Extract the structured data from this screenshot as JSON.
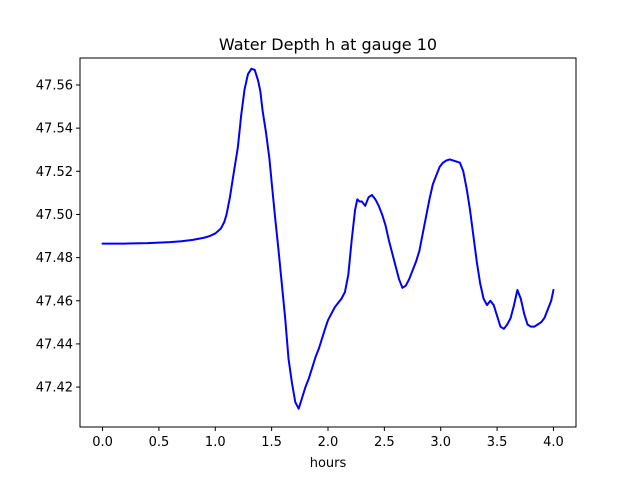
{
  "chart_data": {
    "type": "line",
    "title": "Water Depth h at gauge 10",
    "xlabel": "hours",
    "ylabel": "",
    "xlim": [
      -0.2,
      4.2
    ],
    "ylim": [
      47.4015,
      47.5725
    ],
    "xticks": [
      0.0,
      0.5,
      1.0,
      1.5,
      2.0,
      2.5,
      3.0,
      3.5,
      4.0
    ],
    "xtick_labels": [
      "0.0",
      "0.5",
      "1.0",
      "1.5",
      "2.0",
      "2.5",
      "3.0",
      "3.5",
      "4.0"
    ],
    "yticks": [
      47.42,
      47.44,
      47.46,
      47.48,
      47.5,
      47.52,
      47.54,
      47.56
    ],
    "ytick_labels": [
      "47.42",
      "47.44",
      "47.46",
      "47.48",
      "47.50",
      "47.52",
      "47.54",
      "47.56"
    ],
    "grid": false,
    "series": [
      {
        "color": "#0000ff",
        "x": [
          0.0,
          0.2,
          0.4,
          0.6,
          0.7,
          0.8,
          0.9,
          0.95,
          1.0,
          1.05,
          1.08,
          1.1,
          1.13,
          1.16,
          1.2,
          1.23,
          1.26,
          1.29,
          1.32,
          1.35,
          1.38,
          1.4,
          1.42,
          1.45,
          1.48,
          1.5,
          1.53,
          1.56,
          1.59,
          1.62,
          1.65,
          1.68,
          1.71,
          1.74,
          1.77,
          1.8,
          1.83,
          1.86,
          1.89,
          1.92,
          1.95,
          1.98,
          2.0,
          2.03,
          2.06,
          2.09,
          2.12,
          2.15,
          2.18,
          2.21,
          2.24,
          2.26,
          2.28,
          2.3,
          2.33,
          2.36,
          2.39,
          2.42,
          2.45,
          2.48,
          2.51,
          2.54,
          2.57,
          2.6,
          2.63,
          2.66,
          2.69,
          2.72,
          2.75,
          2.78,
          2.81,
          2.84,
          2.87,
          2.9,
          2.93,
          2.96,
          2.99,
          3.02,
          3.05,
          3.08,
          3.11,
          3.14,
          3.17,
          3.2,
          3.23,
          3.26,
          3.29,
          3.32,
          3.35,
          3.38,
          3.41,
          3.44,
          3.47,
          3.5,
          3.53,
          3.56,
          3.59,
          3.62,
          3.65,
          3.68,
          3.71,
          3.74,
          3.77,
          3.8,
          3.83,
          3.86,
          3.89,
          3.92,
          3.95,
          3.98,
          4.0
        ],
        "y": [
          47.4865,
          47.4865,
          47.4867,
          47.4872,
          47.4876,
          47.4882,
          47.4892,
          47.49,
          47.4912,
          47.4935,
          47.4965,
          47.5,
          47.508,
          47.518,
          47.531,
          47.546,
          47.558,
          47.565,
          47.5675,
          47.567,
          47.562,
          47.557,
          47.548,
          47.538,
          47.526,
          47.515,
          47.499,
          47.484,
          47.468,
          47.452,
          47.433,
          47.422,
          47.413,
          47.41,
          47.415,
          47.42,
          47.424,
          47.429,
          47.434,
          47.438,
          47.443,
          47.448,
          47.451,
          47.454,
          47.457,
          47.459,
          47.461,
          47.464,
          47.472,
          47.488,
          47.502,
          47.507,
          47.506,
          47.506,
          47.504,
          47.508,
          47.509,
          47.507,
          47.504,
          47.5,
          47.495,
          47.488,
          47.482,
          47.476,
          47.47,
          47.466,
          47.467,
          47.47,
          47.474,
          47.478,
          47.483,
          47.491,
          47.499,
          47.507,
          47.514,
          47.518,
          47.522,
          47.524,
          47.525,
          47.5255,
          47.525,
          47.5245,
          47.524,
          47.52,
          47.512,
          47.502,
          47.49,
          47.478,
          47.468,
          47.461,
          47.458,
          47.46,
          47.458,
          47.453,
          47.448,
          47.447,
          47.449,
          47.452,
          47.458,
          47.465,
          47.461,
          47.454,
          47.449,
          47.448,
          47.448,
          47.449,
          47.45,
          47.452,
          47.456,
          47.46,
          47.465
        ]
      }
    ]
  }
}
